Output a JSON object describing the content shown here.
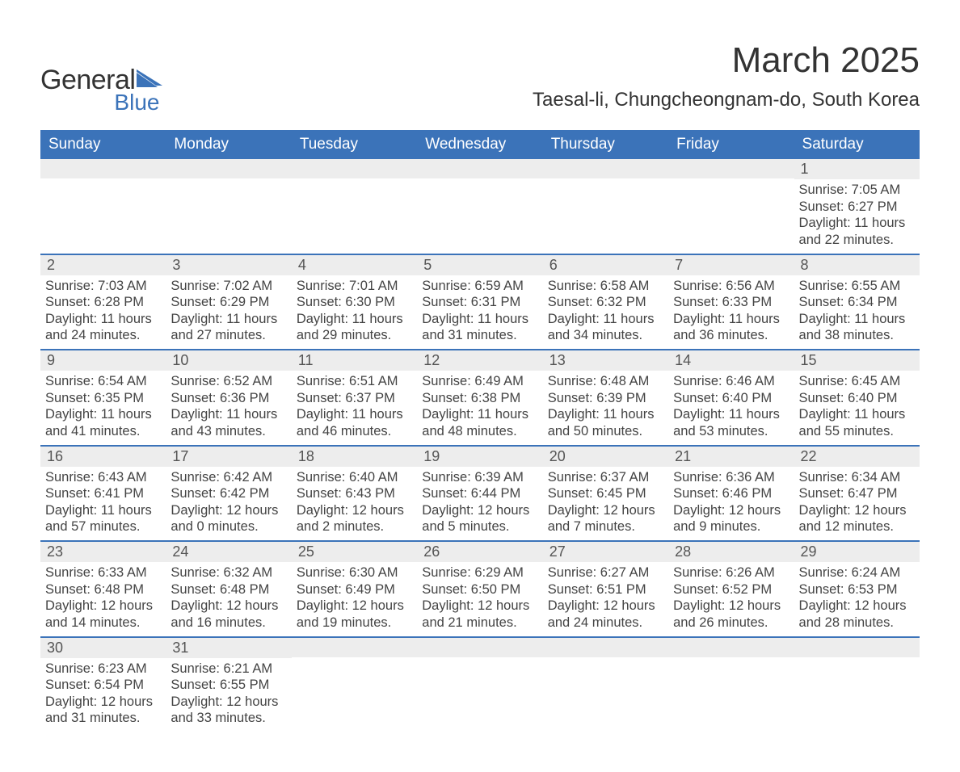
{
  "logo": {
    "word1": "General",
    "word2": "Blue",
    "icon_color": "#3b73b9"
  },
  "title": "March 2025",
  "location": "Taesal-li, Chungcheongnam-do, South Korea",
  "colors": {
    "header_bg": "#3b73b9",
    "header_text": "#ffffff",
    "daynum_bg": "#ededed",
    "row_border": "#3b73b9",
    "body_text": "#444444"
  },
  "day_names": [
    "Sunday",
    "Monday",
    "Tuesday",
    "Wednesday",
    "Thursday",
    "Friday",
    "Saturday"
  ],
  "weeks": [
    [
      {
        "n": "",
        "sunrise": "",
        "sunset": "",
        "daylight": ""
      },
      {
        "n": "",
        "sunrise": "",
        "sunset": "",
        "daylight": ""
      },
      {
        "n": "",
        "sunrise": "",
        "sunset": "",
        "daylight": ""
      },
      {
        "n": "",
        "sunrise": "",
        "sunset": "",
        "daylight": ""
      },
      {
        "n": "",
        "sunrise": "",
        "sunset": "",
        "daylight": ""
      },
      {
        "n": "",
        "sunrise": "",
        "sunset": "",
        "daylight": ""
      },
      {
        "n": "1",
        "sunrise": "Sunrise: 7:05 AM",
        "sunset": "Sunset: 6:27 PM",
        "daylight": "Daylight: 11 hours and 22 minutes."
      }
    ],
    [
      {
        "n": "2",
        "sunrise": "Sunrise: 7:03 AM",
        "sunset": "Sunset: 6:28 PM",
        "daylight": "Daylight: 11 hours and 24 minutes."
      },
      {
        "n": "3",
        "sunrise": "Sunrise: 7:02 AM",
        "sunset": "Sunset: 6:29 PM",
        "daylight": "Daylight: 11 hours and 27 minutes."
      },
      {
        "n": "4",
        "sunrise": "Sunrise: 7:01 AM",
        "sunset": "Sunset: 6:30 PM",
        "daylight": "Daylight: 11 hours and 29 minutes."
      },
      {
        "n": "5",
        "sunrise": "Sunrise: 6:59 AM",
        "sunset": "Sunset: 6:31 PM",
        "daylight": "Daylight: 11 hours and 31 minutes."
      },
      {
        "n": "6",
        "sunrise": "Sunrise: 6:58 AM",
        "sunset": "Sunset: 6:32 PM",
        "daylight": "Daylight: 11 hours and 34 minutes."
      },
      {
        "n": "7",
        "sunrise": "Sunrise: 6:56 AM",
        "sunset": "Sunset: 6:33 PM",
        "daylight": "Daylight: 11 hours and 36 minutes."
      },
      {
        "n": "8",
        "sunrise": "Sunrise: 6:55 AM",
        "sunset": "Sunset: 6:34 PM",
        "daylight": "Daylight: 11 hours and 38 minutes."
      }
    ],
    [
      {
        "n": "9",
        "sunrise": "Sunrise: 6:54 AM",
        "sunset": "Sunset: 6:35 PM",
        "daylight": "Daylight: 11 hours and 41 minutes."
      },
      {
        "n": "10",
        "sunrise": "Sunrise: 6:52 AM",
        "sunset": "Sunset: 6:36 PM",
        "daylight": "Daylight: 11 hours and 43 minutes."
      },
      {
        "n": "11",
        "sunrise": "Sunrise: 6:51 AM",
        "sunset": "Sunset: 6:37 PM",
        "daylight": "Daylight: 11 hours and 46 minutes."
      },
      {
        "n": "12",
        "sunrise": "Sunrise: 6:49 AM",
        "sunset": "Sunset: 6:38 PM",
        "daylight": "Daylight: 11 hours and 48 minutes."
      },
      {
        "n": "13",
        "sunrise": "Sunrise: 6:48 AM",
        "sunset": "Sunset: 6:39 PM",
        "daylight": "Daylight: 11 hours and 50 minutes."
      },
      {
        "n": "14",
        "sunrise": "Sunrise: 6:46 AM",
        "sunset": "Sunset: 6:40 PM",
        "daylight": "Daylight: 11 hours and 53 minutes."
      },
      {
        "n": "15",
        "sunrise": "Sunrise: 6:45 AM",
        "sunset": "Sunset: 6:40 PM",
        "daylight": "Daylight: 11 hours and 55 minutes."
      }
    ],
    [
      {
        "n": "16",
        "sunrise": "Sunrise: 6:43 AM",
        "sunset": "Sunset: 6:41 PM",
        "daylight": "Daylight: 11 hours and 57 minutes."
      },
      {
        "n": "17",
        "sunrise": "Sunrise: 6:42 AM",
        "sunset": "Sunset: 6:42 PM",
        "daylight": "Daylight: 12 hours and 0 minutes."
      },
      {
        "n": "18",
        "sunrise": "Sunrise: 6:40 AM",
        "sunset": "Sunset: 6:43 PM",
        "daylight": "Daylight: 12 hours and 2 minutes."
      },
      {
        "n": "19",
        "sunrise": "Sunrise: 6:39 AM",
        "sunset": "Sunset: 6:44 PM",
        "daylight": "Daylight: 12 hours and 5 minutes."
      },
      {
        "n": "20",
        "sunrise": "Sunrise: 6:37 AM",
        "sunset": "Sunset: 6:45 PM",
        "daylight": "Daylight: 12 hours and 7 minutes."
      },
      {
        "n": "21",
        "sunrise": "Sunrise: 6:36 AM",
        "sunset": "Sunset: 6:46 PM",
        "daylight": "Daylight: 12 hours and 9 minutes."
      },
      {
        "n": "22",
        "sunrise": "Sunrise: 6:34 AM",
        "sunset": "Sunset: 6:47 PM",
        "daylight": "Daylight: 12 hours and 12 minutes."
      }
    ],
    [
      {
        "n": "23",
        "sunrise": "Sunrise: 6:33 AM",
        "sunset": "Sunset: 6:48 PM",
        "daylight": "Daylight: 12 hours and 14 minutes."
      },
      {
        "n": "24",
        "sunrise": "Sunrise: 6:32 AM",
        "sunset": "Sunset: 6:48 PM",
        "daylight": "Daylight: 12 hours and 16 minutes."
      },
      {
        "n": "25",
        "sunrise": "Sunrise: 6:30 AM",
        "sunset": "Sunset: 6:49 PM",
        "daylight": "Daylight: 12 hours and 19 minutes."
      },
      {
        "n": "26",
        "sunrise": "Sunrise: 6:29 AM",
        "sunset": "Sunset: 6:50 PM",
        "daylight": "Daylight: 12 hours and 21 minutes."
      },
      {
        "n": "27",
        "sunrise": "Sunrise: 6:27 AM",
        "sunset": "Sunset: 6:51 PM",
        "daylight": "Daylight: 12 hours and 24 minutes."
      },
      {
        "n": "28",
        "sunrise": "Sunrise: 6:26 AM",
        "sunset": "Sunset: 6:52 PM",
        "daylight": "Daylight: 12 hours and 26 minutes."
      },
      {
        "n": "29",
        "sunrise": "Sunrise: 6:24 AM",
        "sunset": "Sunset: 6:53 PM",
        "daylight": "Daylight: 12 hours and 28 minutes."
      }
    ],
    [
      {
        "n": "30",
        "sunrise": "Sunrise: 6:23 AM",
        "sunset": "Sunset: 6:54 PM",
        "daylight": "Daylight: 12 hours and 31 minutes."
      },
      {
        "n": "31",
        "sunrise": "Sunrise: 6:21 AM",
        "sunset": "Sunset: 6:55 PM",
        "daylight": "Daylight: 12 hours and 33 minutes."
      },
      {
        "n": "",
        "sunrise": "",
        "sunset": "",
        "daylight": ""
      },
      {
        "n": "",
        "sunrise": "",
        "sunset": "",
        "daylight": ""
      },
      {
        "n": "",
        "sunrise": "",
        "sunset": "",
        "daylight": ""
      },
      {
        "n": "",
        "sunrise": "",
        "sunset": "",
        "daylight": ""
      },
      {
        "n": "",
        "sunrise": "",
        "sunset": "",
        "daylight": ""
      }
    ]
  ]
}
